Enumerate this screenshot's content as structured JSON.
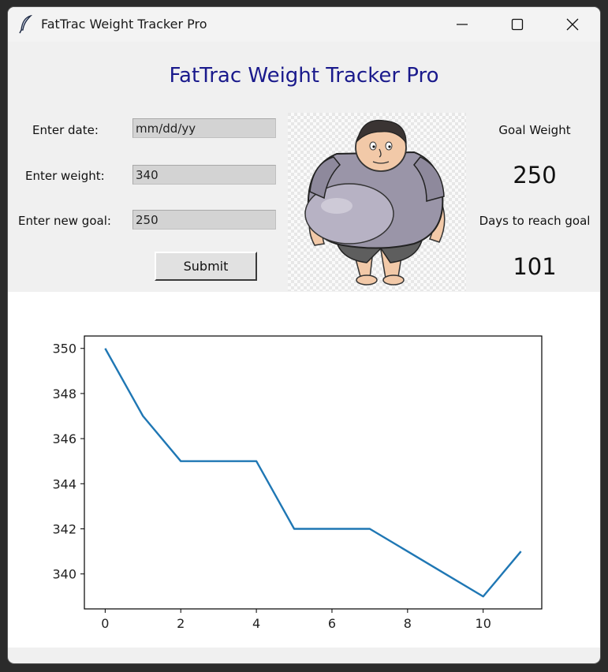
{
  "window": {
    "title": "FatTrac Weight Tracker Pro",
    "app_icon": "feather-icon",
    "controls": [
      "minimize-icon",
      "maximize-icon",
      "close-icon"
    ]
  },
  "header": {
    "title": "FatTrac Weight Tracker Pro",
    "title_color": "#1a1a8c"
  },
  "form": {
    "date_label": "Enter date:",
    "date_value": "mm/dd/yy",
    "weight_label": "Enter weight:",
    "weight_value": "340",
    "goal_label": "Enter new goal:",
    "goal_value": "250",
    "submit_label": "Submit"
  },
  "stats": {
    "goal_weight_label": "Goal Weight",
    "goal_weight_value": "250",
    "days_label": "Days to reach goal",
    "days_value": "101"
  },
  "chart_data": {
    "type": "line",
    "x": [
      0,
      1,
      2,
      3,
      4,
      5,
      6,
      7,
      8,
      9,
      10,
      11
    ],
    "series": [
      {
        "values": [
          350,
          347,
          345,
          345,
          345,
          342,
          342,
          342,
          341,
          340,
          339,
          341
        ],
        "color": "#1f77b4"
      }
    ],
    "xticks": [
      0,
      2,
      4,
      6,
      8,
      10
    ],
    "yticks": [
      340,
      342,
      344,
      346,
      348,
      350
    ],
    "xlim": [
      -0.55,
      11.55
    ],
    "ylim": [
      338.45,
      350.55
    ],
    "grid": false,
    "title": "",
    "xlabel": "",
    "ylabel": ""
  }
}
